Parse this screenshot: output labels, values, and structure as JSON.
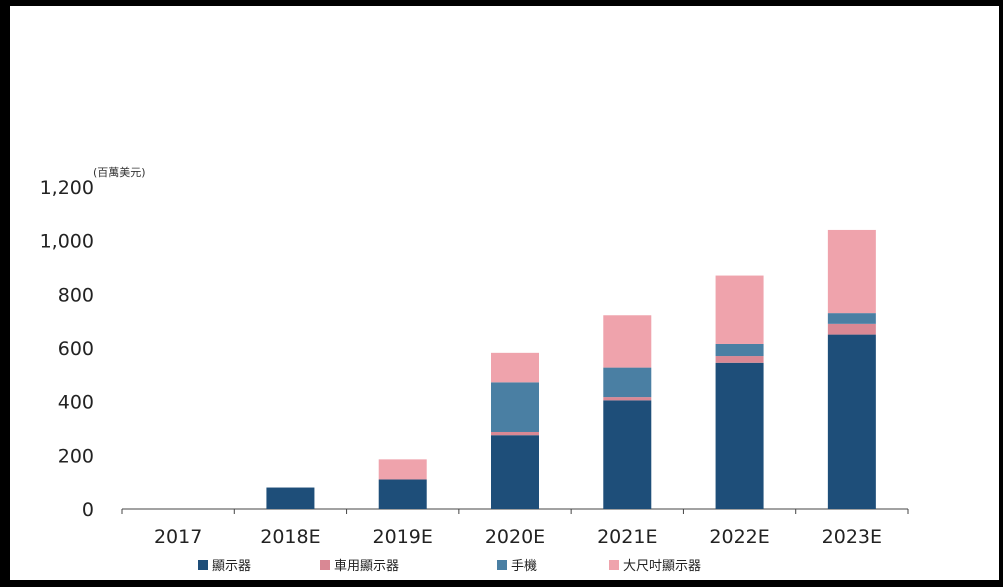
{
  "chart_data": {
    "type": "bar",
    "stacked": true,
    "unit_label": "(百萬美元)",
    "categories": [
      "2017",
      "2018E",
      "2019E",
      "2020E",
      "2021E",
      "2022E",
      "2023E"
    ],
    "series": [
      {
        "name": "顯示器",
        "color": "#1e4e79",
        "values": [
          0,
          80,
          110,
          275,
          405,
          545,
          650
        ]
      },
      {
        "name": "車用顯示器",
        "color": "#d98894",
        "values": [
          0,
          0,
          0,
          12,
          12,
          25,
          40
        ]
      },
      {
        "name": "手機",
        "color": "#4a7fa3",
        "values": [
          0,
          0,
          0,
          185,
          110,
          45,
          40
        ]
      },
      {
        "name": "大尺吋顯示器",
        "color": "#efa3ac",
        "values": [
          0,
          0,
          75,
          110,
          195,
          255,
          310
        ]
      }
    ],
    "ylim": [
      0,
      1200
    ],
    "yticks": [
      0,
      200,
      400,
      600,
      800,
      1000,
      1200
    ],
    "ytick_labels": [
      "0",
      "200",
      "400",
      "600",
      "800",
      "1,000",
      "1,200"
    ],
    "grid": false,
    "legend_position": "bottom"
  }
}
